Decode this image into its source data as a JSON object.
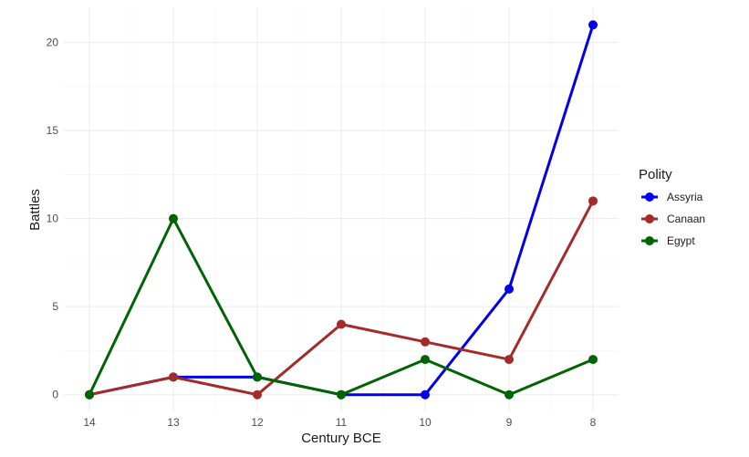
{
  "chart_data": {
    "type": "line",
    "title": "",
    "xlabel": "Century BCE",
    "ylabel": "Battles",
    "categories": [
      "14",
      "13",
      "12",
      "11",
      "10",
      "9",
      "8"
    ],
    "ylim": [
      -1,
      22
    ],
    "yticks": [
      0,
      5,
      10,
      15,
      20
    ],
    "grid": true,
    "legend": {
      "title": "Polity",
      "position": "right"
    },
    "series": [
      {
        "name": "Assyria",
        "color": "#0000ee",
        "values": [
          0,
          1,
          1,
          0,
          0,
          6,
          21
        ]
      },
      {
        "name": "Canaan",
        "color": "#a52a2a",
        "values": [
          0,
          1,
          0,
          4,
          3,
          2,
          11
        ]
      },
      {
        "name": "Egypt",
        "color": "#006400",
        "values": [
          0,
          10,
          1,
          0,
          2,
          0,
          2
        ]
      }
    ]
  }
}
